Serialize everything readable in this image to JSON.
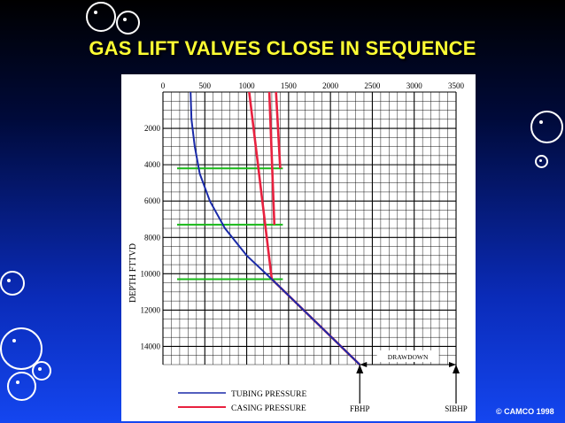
{
  "slide": {
    "title": "GAS LIFT VALVES CLOSE IN SEQUENCE",
    "copyright": "© CAMCO 1998",
    "colors": {
      "title": "#ffff33",
      "tubing": "#1a2aa8",
      "casing": "#e8213f",
      "valve_lines": "#18b818",
      "grid": "#000000"
    }
  },
  "chart_data": {
    "type": "line",
    "title": "",
    "xlabel": "",
    "ylabel": "DEPTH FTTVD",
    "x_ticks": [
      "0",
      "500",
      "1000",
      "1500",
      "2000",
      "2500",
      "3000",
      "3500"
    ],
    "y_ticks": [
      "2000",
      "4000",
      "6000",
      "8000",
      "10000",
      "12000",
      "14000"
    ],
    "xlim": [
      0,
      3500
    ],
    "ylim": [
      0,
      15000
    ],
    "y_inverted": true,
    "grid": true,
    "series": [
      {
        "name": "TUBING PRESSURE",
        "color": "#1a2aa8",
        "points": [
          [
            330,
            0
          ],
          [
            340,
            1500
          ],
          [
            380,
            3000
          ],
          [
            440,
            4500
          ],
          [
            560,
            6000
          ],
          [
            740,
            7500
          ],
          [
            1000,
            9000
          ],
          [
            1300,
            10300
          ],
          [
            2350,
            15000
          ]
        ]
      },
      {
        "name": "CASING PRESSURE",
        "color": "#e8213f",
        "points": [
          [
            1030,
            0
          ],
          [
            1300,
            10300
          ],
          [
            2350,
            15000
          ]
        ]
      },
      {
        "name": "CASING PRESSURE",
        "color": "#e8213f",
        "points": [
          [
            1270,
            0
          ],
          [
            1330,
            7300
          ]
        ]
      },
      {
        "name": "CASING PRESSURE",
        "color": "#e8213f",
        "points": [
          [
            1350,
            0
          ],
          [
            1400,
            4200
          ]
        ]
      }
    ],
    "valve_depths": [
      4200,
      7300,
      10300
    ],
    "annotations": {
      "fbhp_label": "FBHP",
      "sibhp_label": "SIBHP",
      "drawdown_label": "DRAWDOWN",
      "fbhp_pressure": 2350,
      "sibhp_pressure": 3500
    },
    "legend": {
      "placement": "bottom-left",
      "tubing_label": "TUBING PRESSURE",
      "casing_label": "CASING PRESSURE"
    }
  }
}
